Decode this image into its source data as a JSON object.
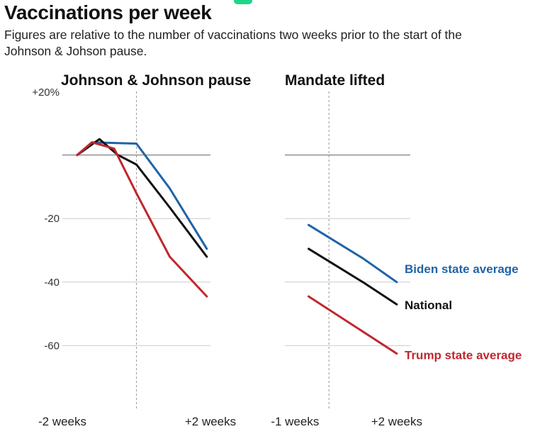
{
  "header": {
    "title": "Vaccinations per week",
    "subtitle": "Figures are relative to the number of vaccinations two weeks prior to the start of the Johnson & Johson pause."
  },
  "colors": {
    "biden": "#1f63a8",
    "national": "#111111",
    "trump": "#c0272d",
    "grid": "#cccccc",
    "baseline": "#888888",
    "event_line": "#999999",
    "tab_chip": "#1dd68a"
  },
  "chart_data": [
    {
      "type": "line",
      "title": "Johnson & Johnson pause",
      "x": [
        -2,
        -1.5,
        -1,
        -0.5,
        0,
        0.5,
        1,
        1.5,
        2
      ],
      "x_tick_labels": [
        {
          "x": -2,
          "label": "-2 weeks"
        },
        {
          "x": 2,
          "label": "+2 weeks"
        }
      ],
      "event_x": 0,
      "ylim": [
        -80,
        20
      ],
      "y_ticks": [
        {
          "y": 20,
          "label": "+20%"
        },
        {
          "y": 0,
          "label": ""
        },
        {
          "y": -20,
          "label": "-20"
        },
        {
          "y": -40,
          "label": "-40"
        },
        {
          "y": -60,
          "label": "-60"
        }
      ],
      "series": [
        {
          "name": "Biden state average",
          "color_key": "biden",
          "points": [
            [
              -1.6,
              0
            ],
            [
              -1.2,
              4
            ],
            [
              -0.6,
              3.8
            ],
            [
              0,
              3.6
            ],
            [
              0.9,
              -10.5
            ],
            [
              1.9,
              -29.5
            ]
          ]
        },
        {
          "name": "National",
          "color_key": "national",
          "points": [
            [
              -1.6,
              0
            ],
            [
              -1.0,
              5
            ],
            [
              -0.5,
              0
            ],
            [
              0,
              -3
            ],
            [
              0.9,
              -16.5
            ],
            [
              1.9,
              -32
            ]
          ]
        },
        {
          "name": "Trump state average",
          "color_key": "trump",
          "points": [
            [
              -1.6,
              0
            ],
            [
              -1.2,
              4
            ],
            [
              -0.6,
              2
            ],
            [
              0,
              -12
            ],
            [
              0.9,
              -32
            ],
            [
              1.9,
              -44.5
            ]
          ]
        }
      ]
    },
    {
      "type": "line",
      "title": "Mandate lifted",
      "x": [
        -1,
        0,
        1,
        2
      ],
      "x_tick_labels": [
        {
          "x": -1,
          "label": "-1 weeks"
        },
        {
          "x": 2,
          "label": "+2 weeks"
        }
      ],
      "event_x": 0,
      "ylim": [
        -80,
        20
      ],
      "series": [
        {
          "name": "Biden state average",
          "color_key": "biden",
          "label": "Biden state average",
          "points": [
            [
              -0.6,
              -22
            ],
            [
              1.0,
              -32.5
            ],
            [
              2.0,
              -40
            ]
          ]
        },
        {
          "name": "National",
          "color_key": "national",
          "label": "National",
          "points": [
            [
              -0.6,
              -29.5
            ],
            [
              1.0,
              -40
            ],
            [
              2.0,
              -47
            ]
          ]
        },
        {
          "name": "Trump state average",
          "color_key": "trump",
          "label": "Trump state average",
          "points": [
            [
              -0.6,
              -44.5
            ],
            [
              2.0,
              -62.5
            ]
          ]
        }
      ]
    }
  ]
}
